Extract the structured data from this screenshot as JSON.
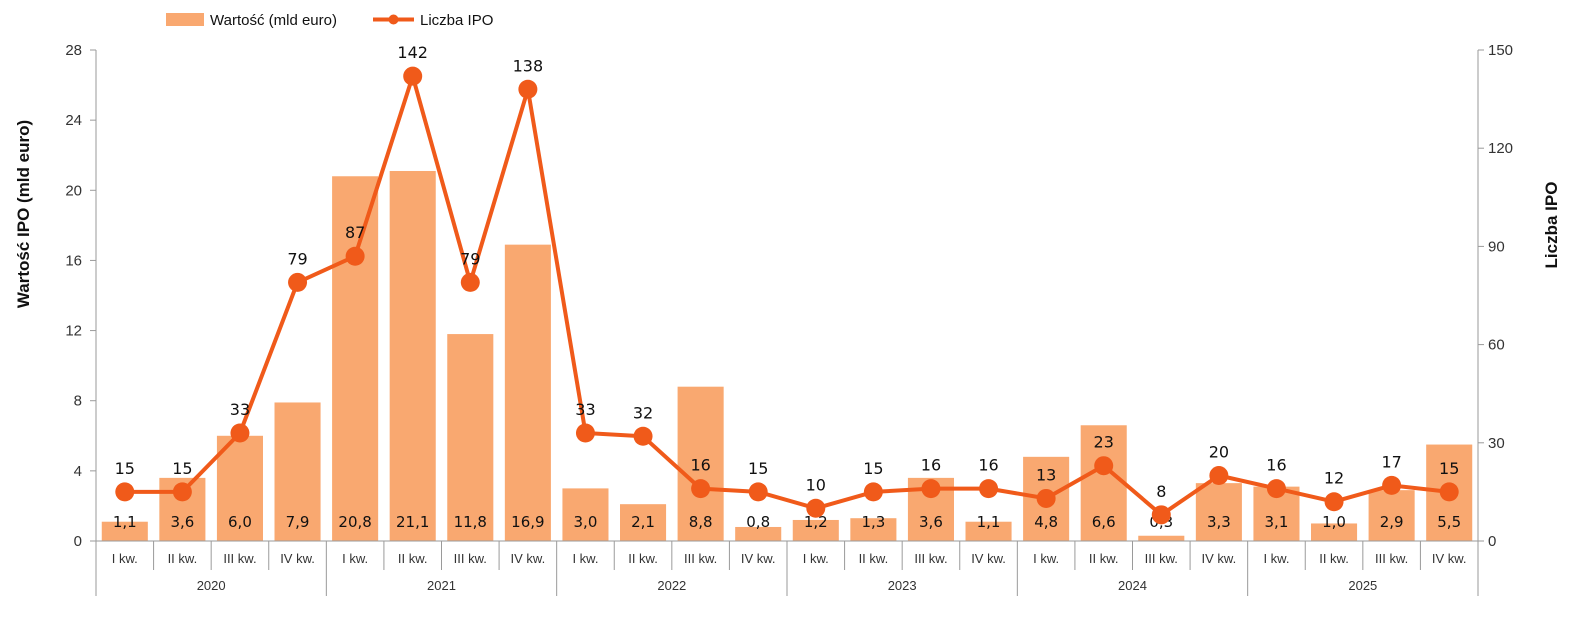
{
  "chart_data": {
    "type": "bar+line",
    "groups": [
      {
        "year": "2020",
        "quarters": [
          "I kw.",
          "II kw.",
          "III kw.",
          "IV kw."
        ]
      },
      {
        "year": "2021",
        "quarters": [
          "I kw.",
          "II kw.",
          "III kw.",
          "IV kw."
        ]
      },
      {
        "year": "2022",
        "quarters": [
          "I kw.",
          "II kw.",
          "III kw.",
          "IV kw."
        ]
      },
      {
        "year": "2023",
        "quarters": [
          "I kw.",
          "II kw.",
          "III kw.",
          "IV kw."
        ]
      },
      {
        "year": "2024",
        "quarters": [
          "I kw.",
          "II kw.",
          "III kw.",
          "IV kw."
        ]
      },
      {
        "year": "2025",
        "quarters": [
          "I kw.",
          "II kw.",
          "III kw.",
          "IV kw."
        ]
      }
    ],
    "series": [
      {
        "name": "Wartość (mld euro)",
        "kind": "bar",
        "axis": "left",
        "color": "#f9a870",
        "values": [
          1.1,
          3.6,
          6.0,
          7.9,
          20.8,
          21.1,
          11.8,
          16.9,
          3.0,
          2.1,
          8.8,
          0.8,
          1.2,
          1.3,
          3.6,
          1.1,
          4.8,
          6.6,
          0.3,
          3.3,
          3.1,
          1.0,
          2.9,
          5.5
        ],
        "labels": [
          "1,1",
          "3,6",
          "6,0",
          "7,9",
          "20,8",
          "21,1",
          "11,8",
          "16,9",
          "3,0",
          "2,1",
          "8,8",
          "0,8",
          "1,2",
          "1,3",
          "3,6",
          "1,1",
          "4,8",
          "6,6",
          "0,3",
          "3,3",
          "3,1",
          "1,0",
          "2,9",
          "5,5"
        ]
      },
      {
        "name": "Liczba IPO",
        "kind": "line",
        "axis": "right",
        "color": "#f05a1a",
        "values": [
          15,
          15,
          33,
          79,
          87,
          142,
          79,
          138,
          33,
          32,
          16,
          15,
          10,
          15,
          16,
          16,
          13,
          23,
          8,
          20,
          16,
          12,
          17,
          15
        ]
      }
    ],
    "ylabel_left": "Wartość IPO (mld euro)",
    "ylabel_right": "Liczba IPO",
    "ylim_left": [
      0,
      28
    ],
    "yticks_left": [
      0,
      4,
      8,
      12,
      16,
      20,
      24,
      28
    ],
    "ylim_right": [
      0,
      150
    ],
    "yticks_right": [
      0,
      30,
      60,
      90,
      120,
      150
    ],
    "legend_position": "top-left",
    "grid": false
  }
}
